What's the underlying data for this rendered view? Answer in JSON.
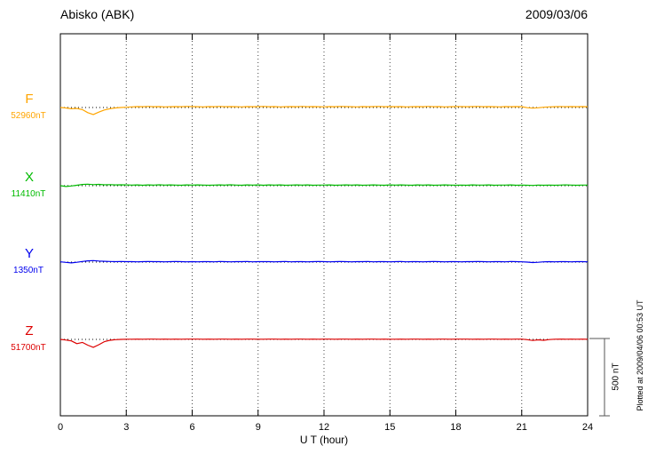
{
  "chart_data": {
    "type": "line",
    "title": "Abisko (ABK)",
    "date": "2009/03/06",
    "xlabel": "U T (hour)",
    "xlim": [
      0,
      24
    ],
    "x_ticks": [
      0,
      3,
      6,
      9,
      12,
      15,
      18,
      21,
      24
    ],
    "grid": "dotted vertical lines every 3 hours; dotted horizontal baseline per trace",
    "legend_position": "left",
    "scale_bar": {
      "label": "500 nT",
      "span_nT": 500
    },
    "footer_note": "Plotted at 2009/04/06 00:53 UT",
    "x_step_hours": 0.25,
    "units": "nT deviation from baseline",
    "series": [
      {
        "name": "F",
        "baseline_label": "52960nT",
        "color": "#FFA500",
        "values": [
          0,
          -3,
          -8,
          -6,
          -14,
          -34,
          -46,
          -30,
          -16,
          -8,
          -3,
          0,
          2,
          4,
          6,
          5,
          7,
          5,
          6,
          4,
          5,
          6,
          5,
          7,
          6,
          5,
          4,
          6,
          5,
          7,
          5,
          6,
          5,
          4,
          6,
          5,
          6,
          7,
          5,
          6,
          4,
          5,
          6,
          5,
          7,
          5,
          6,
          5,
          4,
          6,
          5,
          7,
          6,
          5,
          4,
          6,
          5,
          6,
          7,
          5,
          6,
          5,
          6,
          4,
          5,
          6,
          5,
          7,
          5,
          6,
          4,
          5,
          6,
          6,
          5,
          6,
          7,
          5,
          6,
          5,
          4,
          6,
          5,
          6,
          5,
          -1,
          -4,
          -2,
          2,
          4,
          5,
          6,
          5,
          6,
          5,
          6,
          5
        ]
      },
      {
        "name": "X",
        "baseline_label": "11410nT",
        "color": "#00BB00",
        "values": [
          0,
          -5,
          -2,
          3,
          8,
          10,
          7,
          9,
          6,
          7,
          5,
          6,
          5,
          4,
          5,
          3,
          5,
          4,
          6,
          4,
          5,
          4,
          3,
          5,
          4,
          5,
          4,
          3,
          4,
          5,
          4,
          6,
          4,
          3,
          5,
          4,
          5,
          3,
          5,
          4,
          5,
          3,
          4,
          5,
          4,
          5,
          3,
          4,
          4,
          5,
          3,
          4,
          5,
          4,
          5,
          3,
          4,
          5,
          4,
          3,
          5,
          4,
          5,
          4,
          3,
          5,
          4,
          5,
          3,
          4,
          5,
          4,
          3,
          4,
          3,
          5,
          4,
          4,
          5,
          3,
          4,
          4,
          5,
          3,
          4,
          3,
          2,
          4,
          3,
          4,
          3,
          4,
          5,
          4,
          3,
          4,
          4
        ]
      },
      {
        "name": "Y",
        "baseline_label": "1350nT",
        "color": "#0000EE",
        "values": [
          2,
          -2,
          -5,
          -1,
          4,
          8,
          10,
          7,
          5,
          4,
          3,
          4,
          3,
          3,
          2,
          3,
          4,
          3,
          3,
          2,
          3,
          4,
          3,
          2,
          3,
          2,
          3,
          3,
          2,
          4,
          3,
          2,
          3,
          3,
          4,
          2,
          3,
          3,
          3,
          2,
          3,
          4,
          2,
          3,
          3,
          2,
          3,
          4,
          3,
          2,
          3,
          4,
          3,
          2,
          3,
          3,
          4,
          2,
          3,
          3,
          2,
          3,
          4,
          2,
          3,
          3,
          2,
          3,
          4,
          3,
          2,
          3,
          3,
          2,
          3,
          3,
          4,
          3,
          2,
          3,
          3,
          2,
          4,
          3,
          2,
          0,
          -3,
          -1,
          2,
          3,
          2,
          3,
          3,
          2,
          3,
          3,
          2
        ]
      },
      {
        "name": "Z",
        "baseline_label": "51700nT",
        "color": "#DD0000",
        "values": [
          0,
          -4,
          -10,
          -28,
          -20,
          -38,
          -52,
          -35,
          -15,
          -6,
          -2,
          0,
          1,
          1,
          2,
          1,
          2,
          2,
          1,
          2,
          1,
          2,
          1,
          2,
          2,
          2,
          1,
          2,
          1,
          2,
          2,
          1,
          2,
          1,
          2,
          2,
          1,
          1,
          2,
          2,
          1,
          2,
          1,
          2,
          2,
          1,
          2,
          1,
          2,
          2,
          1,
          2,
          2,
          1,
          2,
          1,
          2,
          2,
          1,
          2,
          1,
          1,
          2,
          1,
          2,
          2,
          1,
          2,
          1,
          2,
          2,
          1,
          2,
          2,
          2,
          1,
          2,
          1,
          2,
          2,
          1,
          2,
          1,
          2,
          2,
          -2,
          -7,
          -3,
          -6,
          -1,
          1,
          2,
          1,
          2,
          1,
          2,
          1
        ]
      }
    ]
  }
}
